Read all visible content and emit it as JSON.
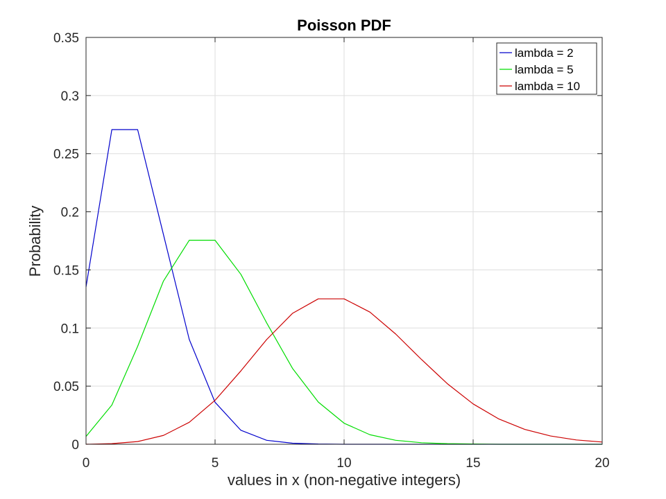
{
  "chart_data": {
    "type": "line",
    "title": "Poisson PDF",
    "xlabel": "values in x (non-negative integers)",
    "ylabel": "Probability",
    "xlim": [
      0,
      20
    ],
    "ylim": [
      0,
      0.35
    ],
    "xticks": [
      0,
      5,
      10,
      15,
      20
    ],
    "xtick_labels": [
      "0",
      "5",
      "10",
      "15",
      "20"
    ],
    "yticks": [
      0,
      0.05,
      0.1,
      0.15,
      0.2,
      0.25,
      0.3,
      0.35
    ],
    "ytick_labels": [
      "0",
      "0.05",
      "0.1",
      "0.15",
      "0.2",
      "0.25",
      "0.3",
      "0.35"
    ],
    "grid": true,
    "legend_position": "top-right",
    "x": [
      0,
      1,
      2,
      3,
      4,
      5,
      6,
      7,
      8,
      9,
      10,
      11,
      12,
      13,
      14,
      15,
      16,
      17,
      18,
      19,
      20
    ],
    "series": [
      {
        "name": "lambda = 2",
        "color": "#0000cc",
        "values": [
          0.1353,
          0.2707,
          0.2707,
          0.1804,
          0.0902,
          0.0361,
          0.012,
          0.0034,
          0.0009,
          0.0002,
          0.0,
          0.0,
          0.0,
          0.0,
          0.0,
          0.0,
          0.0,
          0.0,
          0.0,
          0.0,
          0.0
        ]
      },
      {
        "name": "lambda = 5",
        "color": "#00dd00",
        "values": [
          0.0067,
          0.0337,
          0.0842,
          0.1404,
          0.1755,
          0.1755,
          0.1462,
          0.1044,
          0.0653,
          0.0363,
          0.0181,
          0.0082,
          0.0034,
          0.0013,
          0.0005,
          0.0002,
          0.0,
          0.0,
          0.0,
          0.0,
          0.0
        ]
      },
      {
        "name": "lambda = 10",
        "color": "#cc0000",
        "values": [
          0.0,
          0.0005,
          0.0023,
          0.0076,
          0.0189,
          0.0378,
          0.0631,
          0.0901,
          0.1126,
          0.1251,
          0.1251,
          0.1137,
          0.0948,
          0.0729,
          0.0521,
          0.0347,
          0.0217,
          0.0128,
          0.0071,
          0.0037,
          0.0019
        ]
      }
    ]
  }
}
